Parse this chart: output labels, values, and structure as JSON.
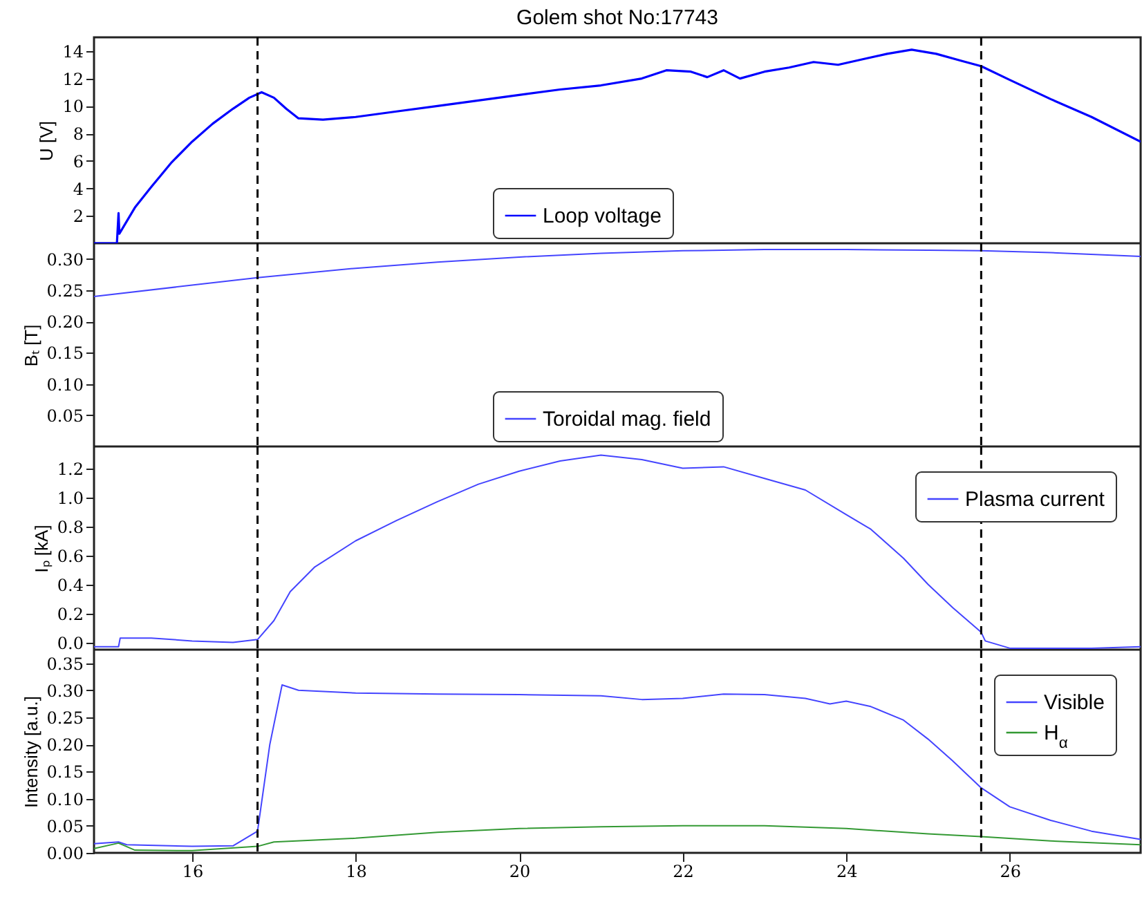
{
  "chart_data": [
    {
      "type": "line",
      "title": "Golem shot No:17743",
      "ylabel": "U [V]",
      "xlim": [
        14.8,
        27.6
      ],
      "xticks": [
        16,
        18,
        20,
        22,
        24,
        26
      ],
      "ylim": [
        0,
        15
      ],
      "yticks": [
        2,
        4,
        6,
        8,
        10,
        12,
        14
      ],
      "tick_labels": "y",
      "grid": false,
      "legend": "bottom",
      "ref_lines": [
        {
          "axis": "x",
          "value": 16.8,
          "color": "#000000",
          "line_style": "dashed"
        },
        {
          "axis": "x",
          "value": 25.65,
          "color": "#000000",
          "line_style": "dashed"
        }
      ],
      "series": [
        {
          "name": "Loop voltage",
          "color": "#0000ff",
          "x": [
            14.8,
            15.08,
            15.1,
            15.11,
            15.3,
            15.5,
            15.75,
            16.0,
            16.25,
            16.5,
            16.7,
            16.85,
            17.0,
            17.15,
            17.3,
            17.6,
            18.0,
            18.5,
            19.0,
            19.5,
            20.0,
            20.5,
            21.0,
            21.5,
            21.8,
            22.1,
            22.3,
            22.5,
            22.7,
            23.0,
            23.3,
            23.6,
            23.9,
            24.2,
            24.5,
            24.8,
            25.1,
            25.4,
            25.65,
            26.0,
            26.5,
            27.0,
            27.6
          ],
          "values": [
            0,
            0,
            2.2,
            0.7,
            2.6,
            4.1,
            5.9,
            7.4,
            8.7,
            9.8,
            10.6,
            11.0,
            10.6,
            9.8,
            9.1,
            9.0,
            9.2,
            9.6,
            10.0,
            10.4,
            10.8,
            11.2,
            11.5,
            12.0,
            12.6,
            12.5,
            12.1,
            12.6,
            12.0,
            12.5,
            12.8,
            13.2,
            13.0,
            13.4,
            13.8,
            14.1,
            13.8,
            13.3,
            12.9,
            11.9,
            10.5,
            9.2,
            7.4
          ]
        }
      ]
    },
    {
      "type": "line",
      "ylabel": "Bₜ [T]",
      "xlim": [
        14.8,
        27.6
      ],
      "xticks": [
        16,
        18,
        20,
        22,
        24,
        26
      ],
      "ylim": [
        0,
        0.325
      ],
      "yticks": [
        {
          "value": 0.05,
          "label": "0.05"
        },
        {
          "value": 0.1,
          "label": "0.10"
        },
        {
          "value": 0.15,
          "label": "0.15"
        },
        {
          "value": 0.2,
          "label": "0.20"
        },
        {
          "value": 0.25,
          "label": "0.25"
        },
        {
          "value": 0.3,
          "label": "0.30"
        }
      ],
      "tick_labels": "y",
      "grid": false,
      "legend": "bottom",
      "ref_lines": [
        {
          "axis": "x",
          "value": 16.8,
          "color": "#000000",
          "line_style": "dashed"
        },
        {
          "axis": "x",
          "value": 25.65,
          "color": "#000000",
          "line_style": "dashed"
        }
      ],
      "series": [
        {
          "name": "Toroidal mag. field",
          "color": "#4444ff",
          "x": [
            14.8,
            16,
            16.8,
            18,
            19,
            20,
            21,
            22,
            23,
            24,
            25,
            25.65,
            26.5,
            27.6
          ],
          "values": [
            0.24,
            0.258,
            0.27,
            0.285,
            0.295,
            0.303,
            0.309,
            0.313,
            0.315,
            0.315,
            0.314,
            0.313,
            0.31,
            0.304
          ]
        }
      ]
    },
    {
      "type": "line",
      "ylabel": "Iₚ [kA]",
      "xlim": [
        14.8,
        27.6
      ],
      "xticks": [
        16,
        18,
        20,
        22,
        24,
        26
      ],
      "ylim": [
        -0.05,
        1.35
      ],
      "yticks": [
        {
          "value": 0,
          "label": "0.0"
        },
        0.2,
        0.4,
        0.6,
        0.8,
        {
          "value": 1,
          "label": "1.0"
        },
        1.2
      ],
      "tick_labels": "y",
      "grid": false,
      "legend": "top right",
      "ref_lines": [
        {
          "axis": "x",
          "value": 16.8,
          "color": "#000000",
          "line_style": "dashed"
        },
        {
          "axis": "x",
          "value": 25.65,
          "color": "#000000",
          "line_style": "dashed"
        }
      ],
      "series": [
        {
          "name": "Plasma current",
          "color": "#4444ff",
          "x": [
            14.8,
            15.1,
            15.12,
            15.5,
            16,
            16.5,
            16.8,
            17.0,
            17.2,
            17.5,
            18,
            18.5,
            19,
            19.5,
            20,
            20.5,
            21,
            21.5,
            22,
            22.5,
            23,
            23.5,
            24,
            24.3,
            24.7,
            25,
            25.3,
            25.65,
            25.7,
            26,
            27,
            27.6
          ],
          "values": [
            -0.03,
            -0.03,
            0.03,
            0.03,
            0.01,
            0.0,
            0.02,
            0.15,
            0.35,
            0.52,
            0.7,
            0.84,
            0.97,
            1.09,
            1.18,
            1.25,
            1.29,
            1.26,
            1.2,
            1.21,
            1.13,
            1.05,
            0.88,
            0.78,
            0.58,
            0.4,
            0.24,
            0.07,
            0.01,
            -0.04,
            -0.04,
            -0.03
          ]
        }
      ]
    },
    {
      "type": "line",
      "ylabel": "Intensity [a.u.]",
      "xlim": [
        14.8,
        27.6
      ],
      "xticks": [
        16,
        18,
        20,
        22,
        24,
        26
      ],
      "ylim": [
        0,
        0.375
      ],
      "yticks": [
        {
          "value": 0,
          "label": "0.00"
        },
        0.05,
        {
          "value": 0.1,
          "label": "0.10"
        },
        0.15,
        {
          "value": 0.2,
          "label": "0.20"
        },
        0.25,
        {
          "value": 0.3,
          "label": "0.30"
        },
        0.35
      ],
      "grid": false,
      "legend": "top right",
      "ref_lines": [
        {
          "axis": "x",
          "value": 16.8,
          "color": "#000000",
          "line_style": "dashed"
        },
        {
          "axis": "x",
          "value": 25.65,
          "color": "#000000",
          "line_style": "dashed"
        }
      ],
      "series": [
        {
          "name": "Visible",
          "color": "#4444ff",
          "x": [
            14.8,
            15.1,
            15.2,
            16,
            16.5,
            16.8,
            16.95,
            17.1,
            17.3,
            18,
            19,
            20,
            21,
            21.5,
            22,
            22.5,
            23,
            23.5,
            23.8,
            24,
            24.3,
            24.7,
            25,
            25.3,
            25.65,
            26,
            26.5,
            27,
            27.6
          ],
          "values": [
            0.017,
            0.02,
            0.015,
            0.012,
            0.013,
            0.04,
            0.2,
            0.31,
            0.3,
            0.295,
            0.293,
            0.292,
            0.29,
            0.283,
            0.285,
            0.293,
            0.292,
            0.285,
            0.275,
            0.28,
            0.27,
            0.245,
            0.21,
            0.17,
            0.12,
            0.085,
            0.06,
            0.04,
            0.025
          ]
        },
        {
          "name": "H$_{α}$",
          "color": "#339933",
          "x": [
            14.8,
            15.1,
            15.3,
            16,
            16.8,
            17,
            18,
            19,
            20,
            21,
            22,
            23,
            24,
            25,
            25.65,
            26.5,
            27.6
          ],
          "values": [
            0.008,
            0.018,
            0.005,
            0.004,
            0.012,
            0.02,
            0.027,
            0.038,
            0.045,
            0.048,
            0.05,
            0.05,
            0.045,
            0.035,
            0.03,
            0.022,
            0.015
          ]
        }
      ]
    }
  ]
}
